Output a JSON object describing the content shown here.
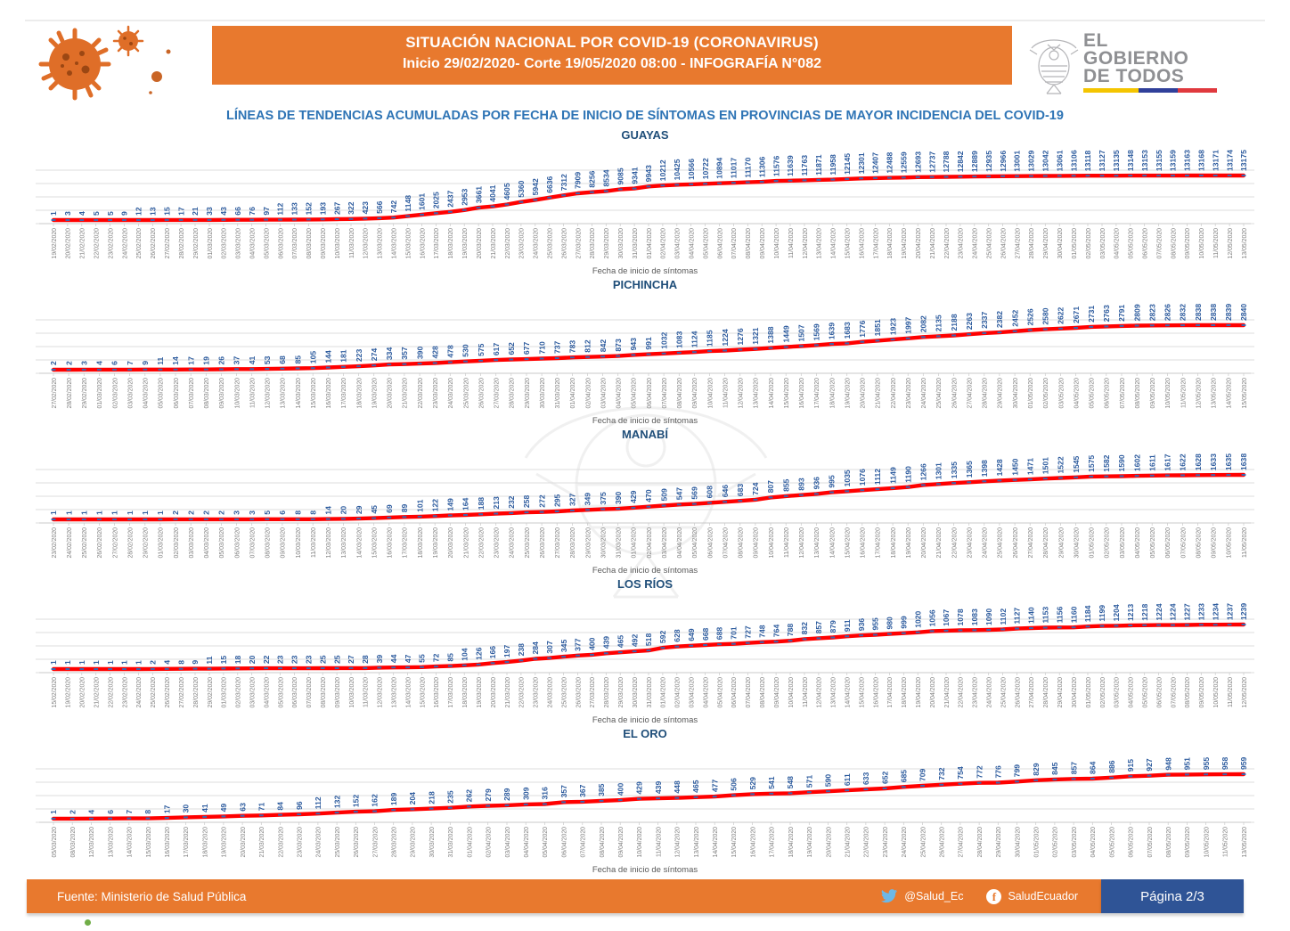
{
  "header": {
    "title_line1": "SITUACIÓN NACIONAL POR  COVID-19 (CORONAVIRUS)",
    "title_line2": "Inicio 29/02/2020- Corte 19/05/2020 08:00  - INFOGRAFÍA N°082",
    "logo": {
      "line1": "EL",
      "line2": "GOBIERNO",
      "line3": "DE TODOS"
    }
  },
  "subtitle": "LÍNEAS DE TENDENCIAS ACUMULADAS POR FECHA DE INICIO DE SÍNTOMAS EN PROVINCIAS DE MAYOR INCIDENCIA DEL COVID-19",
  "footer": {
    "source": "Fuente: Ministerio de Salud Pública",
    "twitter_handle": "@Salud_Ec",
    "facebook_handle": "SaludEcuador",
    "page_label": "Página 2/3"
  },
  "colors": {
    "banner_orange": "#E8792E",
    "line_red": "#FF0000",
    "marker_blue": "#3A66B0",
    "value_label_blue": "#2E5C9E",
    "chart_title_navy": "#1F4E79",
    "subtitle_blue": "#2E74B5",
    "date_gray": "#808080",
    "grid_gray": "#DCDCDC",
    "page_badge_blue": "#2F5496",
    "twitter_blue": "#6CB8E8",
    "gov_gray": "#8F9093",
    "green_dot": "#70AD47"
  },
  "icons": {
    "virus": "virus-icon",
    "coat_of_arms": "coat-of-arms-icon",
    "twitter": "twitter-bird-icon",
    "facebook": "facebook-icon"
  },
  "chart_data": [
    {
      "type": "line",
      "title": "GUAYAS",
      "xlabel": "Fecha de inicio de síntomas",
      "legend_position": "none",
      "grid": true,
      "x": [
        "19/02/2020",
        "20/02/2020",
        "21/02/2020",
        "22/02/2020",
        "23/02/2020",
        "24/02/2020",
        "25/02/2020",
        "26/02/2020",
        "27/02/2020",
        "28/02/2020",
        "29/02/2020",
        "01/03/2020",
        "02/03/2020",
        "03/03/2020",
        "04/03/2020",
        "05/03/2020",
        "06/03/2020",
        "07/03/2020",
        "08/03/2020",
        "09/03/2020",
        "10/03/2020",
        "11/03/2020",
        "12/03/2020",
        "13/03/2020",
        "14/03/2020",
        "15/03/2020",
        "16/03/2020",
        "17/03/2020",
        "18/03/2020",
        "19/03/2020",
        "20/03/2020",
        "21/03/2020",
        "22/03/2020",
        "23/03/2020",
        "24/03/2020",
        "25/03/2020",
        "26/03/2020",
        "27/03/2020",
        "28/03/2020",
        "29/03/2020",
        "30/03/2020",
        "31/03/2020",
        "01/04/2020",
        "02/04/2020",
        "03/04/2020",
        "04/04/2020",
        "05/04/2020",
        "06/04/2020",
        "07/04/2020",
        "08/04/2020",
        "09/04/2020",
        "10/04/2020",
        "11/04/2020",
        "12/04/2020",
        "13/04/2020",
        "14/04/2020",
        "15/04/2020",
        "16/04/2020",
        "17/04/2020",
        "18/04/2020",
        "19/04/2020",
        "20/04/2020",
        "21/04/2020",
        "22/04/2020",
        "23/04/2020",
        "24/04/2020",
        "25/04/2020",
        "26/04/2020",
        "27/04/2020",
        "28/04/2020",
        "29/04/2020",
        "30/04/2020",
        "01/05/2020",
        "02/05/2020",
        "03/05/2020",
        "04/05/2020",
        "05/05/2020",
        "06/05/2020",
        "07/05/2020",
        "08/05/2020",
        "09/05/2020",
        "10/05/2020",
        "11/05/2020",
        "12/05/2020",
        "13/05/2020"
      ],
      "values": [
        1,
        3,
        4,
        5,
        5,
        9,
        12,
        13,
        15,
        17,
        21,
        33,
        43,
        66,
        76,
        97,
        112,
        133,
        152,
        193,
        267,
        322,
        423,
        566,
        742,
        1148,
        1601,
        2025,
        2437,
        2953,
        3661,
        4041,
        4605,
        5360,
        5942,
        6636,
        7312,
        7909,
        8256,
        8534,
        9085,
        9341,
        9943,
        10212,
        10425,
        10566,
        10722,
        10894,
        11017,
        11170,
        11306,
        11576,
        11639,
        11763,
        11871,
        11958,
        12145,
        12301,
        12407,
        12488,
        12559,
        12693,
        12737,
        12788,
        12842,
        12889,
        12935,
        12966,
        13001,
        13029,
        13042,
        13061,
        13106,
        13118,
        13127,
        13135,
        13148,
        13153,
        13155,
        13159,
        13163,
        13168,
        13171,
        13174,
        13175
      ]
    },
    {
      "type": "line",
      "title": "PICHINCHA",
      "xlabel": "Fecha de inicio de síntomas",
      "legend_position": "none",
      "grid": true,
      "x": [
        "27/02/2020",
        "28/02/2020",
        "29/02/2020",
        "01/03/2020",
        "02/03/2020",
        "03/03/2020",
        "04/03/2020",
        "05/03/2020",
        "06/03/2020",
        "07/03/2020",
        "08/03/2020",
        "09/03/2020",
        "10/03/2020",
        "11/03/2020",
        "12/03/2020",
        "13/03/2020",
        "14/03/2020",
        "15/03/2020",
        "16/03/2020",
        "17/03/2020",
        "18/03/2020",
        "19/03/2020",
        "20/03/2020",
        "21/03/2020",
        "22/03/2020",
        "23/03/2020",
        "24/03/2020",
        "25/03/2020",
        "26/03/2020",
        "27/03/2020",
        "28/03/2020",
        "29/03/2020",
        "30/03/2020",
        "31/03/2020",
        "01/04/2020",
        "02/04/2020",
        "03/04/2020",
        "04/04/2020",
        "05/04/2020",
        "06/04/2020",
        "07/04/2020",
        "08/04/2020",
        "09/04/2020",
        "10/04/2020",
        "11/04/2020",
        "12/04/2020",
        "13/04/2020",
        "14/04/2020",
        "15/04/2020",
        "16/04/2020",
        "17/04/2020",
        "18/04/2020",
        "19/04/2020",
        "20/04/2020",
        "21/04/2020",
        "22/04/2020",
        "23/04/2020",
        "24/04/2020",
        "25/04/2020",
        "26/04/2020",
        "27/04/2020",
        "28/04/2020",
        "29/04/2020",
        "30/04/2020",
        "01/05/2020",
        "02/05/2020",
        "03/05/2020",
        "04/05/2020",
        "05/05/2020",
        "06/05/2020",
        "07/05/2020",
        "08/05/2020",
        "09/05/2020",
        "10/05/2020",
        "11/05/2020",
        "12/05/2020",
        "13/05/2020",
        "14/05/2020",
        "15/05/2020"
      ],
      "values": [
        2,
        2,
        3,
        4,
        6,
        7,
        9,
        11,
        14,
        17,
        19,
        26,
        37,
        41,
        53,
        68,
        85,
        105,
        144,
        181,
        223,
        274,
        334,
        357,
        390,
        428,
        478,
        530,
        575,
        617,
        652,
        677,
        710,
        737,
        783,
        812,
        842,
        873,
        943,
        991,
        1032,
        1083,
        1124,
        1185,
        1224,
        1276,
        1321,
        1388,
        1449,
        1507,
        1569,
        1639,
        1683,
        1776,
        1851,
        1923,
        1997,
        2082,
        2135,
        2188,
        2263,
        2337,
        2382,
        2452,
        2526,
        2580,
        2622,
        2671,
        2731,
        2763,
        2791,
        2809,
        2823,
        2826,
        2832,
        2838,
        2838,
        2839,
        2840
      ]
    },
    {
      "type": "line",
      "title": "MANABÍ",
      "xlabel": "Fecha de inicio de síntomas",
      "legend_position": "none",
      "grid": true,
      "x": [
        "23/02/2020",
        "24/02/2020",
        "25/02/2020",
        "26/02/2020",
        "27/02/2020",
        "28/02/2020",
        "29/02/2020",
        "01/03/2020",
        "02/03/2020",
        "03/03/2020",
        "04/03/2020",
        "05/03/2020",
        "06/03/2020",
        "07/03/2020",
        "08/03/2020",
        "09/03/2020",
        "10/03/2020",
        "11/03/2020",
        "12/03/2020",
        "13/03/2020",
        "14/03/2020",
        "15/03/2020",
        "16/03/2020",
        "17/03/2020",
        "18/03/2020",
        "19/03/2020",
        "20/03/2020",
        "21/03/2020",
        "22/03/2020",
        "23/03/2020",
        "24/03/2020",
        "25/03/2020",
        "26/03/2020",
        "27/03/2020",
        "28/03/2020",
        "29/03/2020",
        "30/03/2020",
        "31/03/2020",
        "01/04/2020",
        "02/04/2020",
        "03/04/2020",
        "04/04/2020",
        "05/04/2020",
        "06/04/2020",
        "07/04/2020",
        "08/04/2020",
        "09/04/2020",
        "10/04/2020",
        "11/04/2020",
        "12/04/2020",
        "13/04/2020",
        "14/04/2020",
        "15/04/2020",
        "16/04/2020",
        "17/04/2020",
        "18/04/2020",
        "19/04/2020",
        "20/04/2020",
        "21/04/2020",
        "22/04/2020",
        "23/04/2020",
        "24/04/2020",
        "25/04/2020",
        "26/04/2020",
        "27/04/2020",
        "28/04/2020",
        "29/04/2020",
        "30/04/2020",
        "01/05/2020",
        "02/05/2020",
        "03/05/2020",
        "04/05/2020",
        "05/05/2020",
        "06/05/2020",
        "07/05/2020",
        "08/05/2020",
        "09/05/2020",
        "10/05/2020",
        "11/05/2020"
      ],
      "values": [
        1,
        1,
        1,
        1,
        1,
        1,
        1,
        1,
        2,
        2,
        2,
        2,
        3,
        3,
        5,
        6,
        8,
        8,
        14,
        20,
        29,
        45,
        69,
        89,
        101,
        122,
        149,
        164,
        188,
        213,
        232,
        258,
        272,
        295,
        327,
        349,
        375,
        390,
        429,
        470,
        509,
        547,
        569,
        608,
        646,
        683,
        724,
        807,
        855,
        893,
        936,
        995,
        1035,
        1076,
        1112,
        1149,
        1190,
        1266,
        1301,
        1335,
        1365,
        1398,
        1428,
        1450,
        1471,
        1501,
        1522,
        1545,
        1575,
        1582,
        1590,
        1602,
        1611,
        1617,
        1622,
        1628,
        1633,
        1635,
        1638
      ]
    },
    {
      "type": "line",
      "title": "LOS RÍOS",
      "xlabel": "Fecha de inicio de síntomas",
      "legend_position": "none",
      "grid": true,
      "x": [
        "15/02/2020",
        "19/02/2020",
        "20/02/2020",
        "21/02/2020",
        "22/02/2020",
        "23/02/2020",
        "24/02/2020",
        "25/02/2020",
        "26/02/2020",
        "27/02/2020",
        "28/02/2020",
        "29/02/2020",
        "01/03/2020",
        "02/03/2020",
        "03/03/2020",
        "04/03/2020",
        "05/03/2020",
        "06/03/2020",
        "07/03/2020",
        "08/03/2020",
        "09/03/2020",
        "10/03/2020",
        "11/03/2020",
        "12/03/2020",
        "13/03/2020",
        "14/03/2020",
        "15/03/2020",
        "16/03/2020",
        "17/03/2020",
        "18/03/2020",
        "19/03/2020",
        "20/03/2020",
        "21/03/2020",
        "22/03/2020",
        "23/03/2020",
        "24/03/2020",
        "25/03/2020",
        "26/03/2020",
        "27/03/2020",
        "28/03/2020",
        "29/03/2020",
        "30/03/2020",
        "31/03/2020",
        "01/04/2020",
        "02/04/2020",
        "03/04/2020",
        "04/04/2020",
        "05/04/2020",
        "06/04/2020",
        "07/04/2020",
        "08/04/2020",
        "09/04/2020",
        "10/04/2020",
        "11/04/2020",
        "12/04/2020",
        "13/04/2020",
        "14/04/2020",
        "15/04/2020",
        "16/04/2020",
        "17/04/2020",
        "18/04/2020",
        "19/04/2020",
        "20/04/2020",
        "21/04/2020",
        "22/04/2020",
        "23/04/2020",
        "24/04/2020",
        "25/04/2020",
        "26/04/2020",
        "27/04/2020",
        "28/04/2020",
        "29/04/2020",
        "30/04/2020",
        "01/05/2020",
        "02/05/2020",
        "03/05/2020",
        "04/05/2020",
        "05/05/2020",
        "06/05/2020",
        "07/05/2020",
        "08/05/2020",
        "09/05/2020",
        "10/05/2020",
        "11/05/2020",
        "12/05/2020"
      ],
      "values": [
        1,
        1,
        1,
        1,
        1,
        1,
        1,
        2,
        4,
        8,
        9,
        11,
        15,
        18,
        20,
        22,
        23,
        23,
        23,
        25,
        25,
        27,
        28,
        39,
        44,
        47,
        55,
        72,
        85,
        104,
        126,
        166,
        197,
        238,
        284,
        307,
        345,
        377,
        400,
        439,
        465,
        492,
        518,
        592,
        628,
        649,
        668,
        688,
        701,
        727,
        748,
        764,
        788,
        832,
        857,
        879,
        911,
        936,
        955,
        980,
        999,
        1020,
        1056,
        1067,
        1078,
        1083,
        1090,
        1102,
        1127,
        1140,
        1153,
        1156,
        1160,
        1184,
        1199,
        1204,
        1213,
        1218,
        1224,
        1224,
        1227,
        1233,
        1234,
        1237,
        1239
      ]
    },
    {
      "type": "line",
      "title": "EL ORO",
      "xlabel": "Fecha de inicio de síntomas",
      "legend_position": "none",
      "grid": true,
      "x": [
        "05/03/2020",
        "08/03/2020",
        "12/03/2020",
        "13/03/2020",
        "14/03/2020",
        "15/03/2020",
        "16/03/2020",
        "17/03/2020",
        "18/03/2020",
        "19/03/2020",
        "20/03/2020",
        "21/03/2020",
        "22/03/2020",
        "23/03/2020",
        "24/03/2020",
        "25/03/2020",
        "26/03/2020",
        "27/03/2020",
        "28/03/2020",
        "29/03/2020",
        "30/03/2020",
        "31/03/2020",
        "01/04/2020",
        "02/04/2020",
        "03/04/2020",
        "04/04/2020",
        "05/04/2020",
        "06/04/2020",
        "07/04/2020",
        "08/04/2020",
        "09/04/2020",
        "10/04/2020",
        "11/04/2020",
        "12/04/2020",
        "13/04/2020",
        "14/04/2020",
        "15/04/2020",
        "16/04/2020",
        "17/04/2020",
        "18/04/2020",
        "19/04/2020",
        "20/04/2020",
        "21/04/2020",
        "22/04/2020",
        "23/04/2020",
        "24/04/2020",
        "25/04/2020",
        "26/04/2020",
        "27/04/2020",
        "28/04/2020",
        "29/04/2020",
        "30/04/2020",
        "01/05/2020",
        "02/05/2020",
        "03/05/2020",
        "04/05/2020",
        "05/05/2020",
        "06/05/2020",
        "07/05/2020",
        "08/05/2020",
        "09/05/2020",
        "10/05/2020",
        "11/05/2020",
        "13/05/2020"
      ],
      "values": [
        1,
        2,
        4,
        6,
        7,
        8,
        17,
        30,
        41,
        49,
        63,
        71,
        84,
        96,
        112,
        132,
        152,
        162,
        189,
        204,
        218,
        235,
        262,
        279,
        289,
        309,
        316,
        357,
        367,
        385,
        400,
        429,
        439,
        448,
        465,
        477,
        506,
        529,
        541,
        548,
        571,
        590,
        611,
        633,
        652,
        685,
        709,
        732,
        754,
        772,
        776,
        799,
        829,
        845,
        857,
        864,
        886,
        915,
        927,
        948,
        951,
        955,
        958,
        959
      ]
    }
  ]
}
